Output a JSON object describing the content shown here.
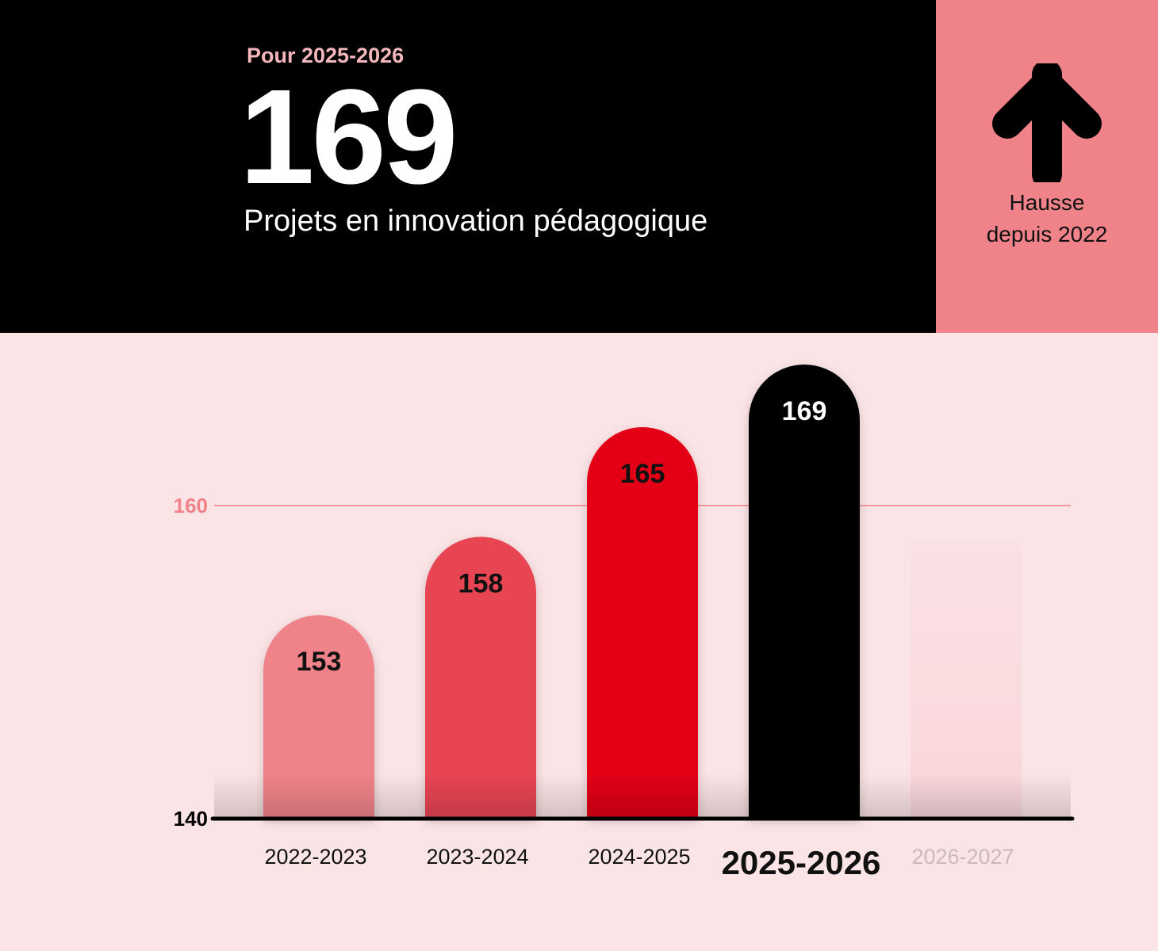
{
  "header": {
    "subtitle": "Pour 2025-2026",
    "big_number": "169",
    "caption": "Projets en innovation pédagogique"
  },
  "trend": {
    "icon": "arrow-up-icon",
    "label_line1": "Hausse",
    "label_line2": "depuis 2022"
  },
  "colors": {
    "header_bg": "#000000",
    "trend_bg": "#f0838a",
    "chart_bg": "#fbe4e6",
    "gridline": "#f0838a",
    "bar_colors": [
      "#f0838a",
      "#e84553",
      "#e30613",
      "#000000",
      "#f9d6da"
    ]
  },
  "chart_data": {
    "type": "bar",
    "categories": [
      "2022-2023",
      "2023-2024",
      "2024-2025",
      "2025-2026",
      "2026-2027"
    ],
    "values": [
      153,
      158,
      165,
      169,
      null
    ],
    "value_labels": [
      "153",
      "158",
      "165",
      "169",
      ""
    ],
    "highlight_category": "2025-2026",
    "placeholder_category": "2026-2027",
    "ylim": [
      140,
      169
    ],
    "yticks": [
      {
        "value": 140,
        "label": "140"
      },
      {
        "value": 160,
        "label": "160"
      }
    ],
    "grid": "horizontal line at 160",
    "title": "",
    "xlabel": "",
    "ylabel": ""
  }
}
